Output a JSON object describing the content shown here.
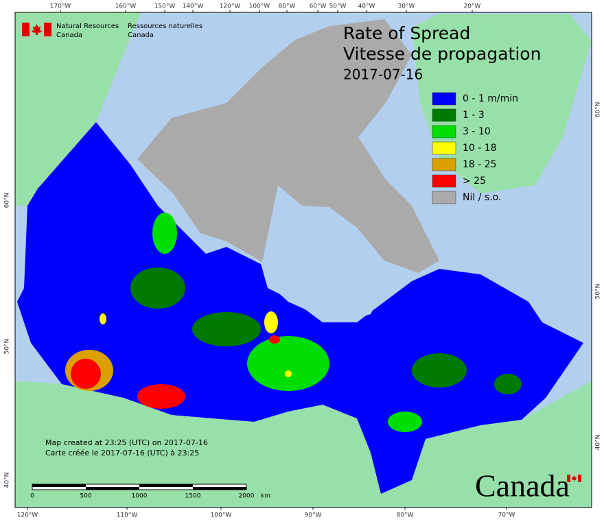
{
  "org_en_1": "Natural Resources",
  "org_en_2": "Canada",
  "org_fr_1": "Ressources naturelles",
  "org_fr_2": "Canada",
  "title_1": "Rate of Spread",
  "title_2": "Vitesse de propagation",
  "date": "2017-07-16",
  "legend": [
    {
      "label": "0 - 1 m/min",
      "color": "#0000ff"
    },
    {
      "label": "1 - 3",
      "color": "#007a00"
    },
    {
      "label": "3 - 10",
      "color": "#00dd00"
    },
    {
      "label": "10 - 18",
      "color": "#ffff00"
    },
    {
      "label": "18 - 25",
      "color": "#dba000"
    },
    {
      "label": "> 25",
      "color": "#ff0000"
    },
    {
      "label": "Nil / s.o.",
      "color": "#aaaaaa"
    }
  ],
  "top_labels": [
    "170°W",
    "160°W",
    "150°W",
    "140°W",
    "120°W",
    "100°W",
    "80°W",
    "60°W",
    "50°W",
    "40°W",
    "30°W",
    "20°W"
  ],
  "bottom_labels": [
    "120°W",
    "110°W",
    "100°W",
    "90°W",
    "80°W",
    "70°W"
  ],
  "left_labels": [
    "60°N",
    "50°N",
    "40°N"
  ],
  "right_labels": [
    "60°N",
    "50°N",
    "40°N"
  ],
  "note_1": "Map created at 23:25 (UTC) on 2017-07-16",
  "note_2": "Carte créée le 2017-07-16 (UTC) à 23:25",
  "scale_labels": [
    "0",
    "500",
    "1000",
    "1500",
    "2000"
  ],
  "scale_unit": "km",
  "wordmark": "Canada"
}
